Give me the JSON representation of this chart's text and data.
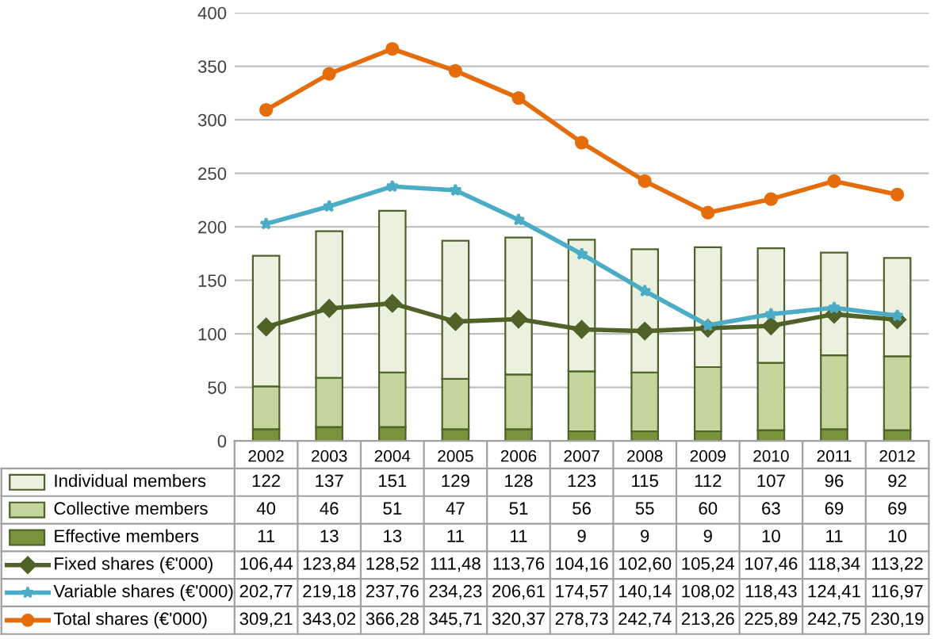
{
  "chart_data": {
    "type": "bar",
    "stacked": true,
    "categories": [
      "2002",
      "2003",
      "2004",
      "2005",
      "2006",
      "2007",
      "2008",
      "2009",
      "2010",
      "2011",
      "2012"
    ],
    "series": [
      {
        "name": "Effective members",
        "color": "#77933c",
        "values": [
          11,
          13,
          13,
          11,
          11,
          9,
          9,
          9,
          10,
          11,
          10
        ],
        "value_labels": [
          "11",
          "13",
          "13",
          "11",
          "11",
          "9",
          "9",
          "9",
          "10",
          "11",
          "10"
        ]
      },
      {
        "name": "Collective members",
        "color": "#c3d69b",
        "values": [
          40,
          46,
          51,
          47,
          51,
          56,
          55,
          60,
          63,
          69,
          69
        ],
        "value_labels": [
          "40",
          "46",
          "51",
          "47",
          "51",
          "56",
          "55",
          "60",
          "63",
          "69",
          "69"
        ]
      },
      {
        "name": "Individual members",
        "color": "#ebf1de",
        "values": [
          122,
          137,
          151,
          129,
          128,
          123,
          115,
          112,
          107,
          96,
          92
        ],
        "value_labels": [
          "122",
          "137",
          "151",
          "129",
          "128",
          "123",
          "115",
          "112",
          "107",
          "96",
          "92"
        ]
      },
      {
        "name": "Fixed shares (€'000)",
        "type": "line",
        "marker": "diamond",
        "color": "#4f6228",
        "values": [
          106.44,
          123.84,
          128.52,
          111.48,
          113.76,
          104.16,
          102.6,
          105.24,
          107.46,
          118.34,
          113.22
        ],
        "value_labels": [
          "106,44",
          "123,84",
          "128,52",
          "111,48",
          "113,76",
          "104,16",
          "102,60",
          "105,24",
          "107,46",
          "118,34",
          "113,22"
        ]
      },
      {
        "name": "Variable shares (€'000)",
        "type": "line",
        "marker": "star",
        "color": "#4bacc6",
        "values": [
          202.77,
          219.18,
          237.76,
          234.23,
          206.61,
          174.57,
          140.14,
          108.02,
          118.43,
          124.41,
          116.97
        ],
        "value_labels": [
          "202,77",
          "219,18",
          "237,76",
          "234,23",
          "206,61",
          "174,57",
          "140,14",
          "108,02",
          "118,43",
          "124,41",
          "116,97"
        ]
      },
      {
        "name": "Total shares (€'000)",
        "type": "line",
        "marker": "circle",
        "color": "#e46c0a",
        "values": [
          309.21,
          343.02,
          366.28,
          345.71,
          320.37,
          278.73,
          242.74,
          213.26,
          225.89,
          242.75,
          230.19
        ],
        "value_labels": [
          "309,21",
          "343,02",
          "366,28",
          "345,71",
          "320,37",
          "278,73",
          "242,74",
          "213,26",
          "225,89",
          "242,75",
          "230,19"
        ]
      }
    ],
    "ylim": [
      0,
      400
    ],
    "yticks": [
      0,
      50,
      100,
      150,
      200,
      250,
      300,
      350,
      400
    ],
    "grid": "y",
    "legend": "bottom"
  }
}
